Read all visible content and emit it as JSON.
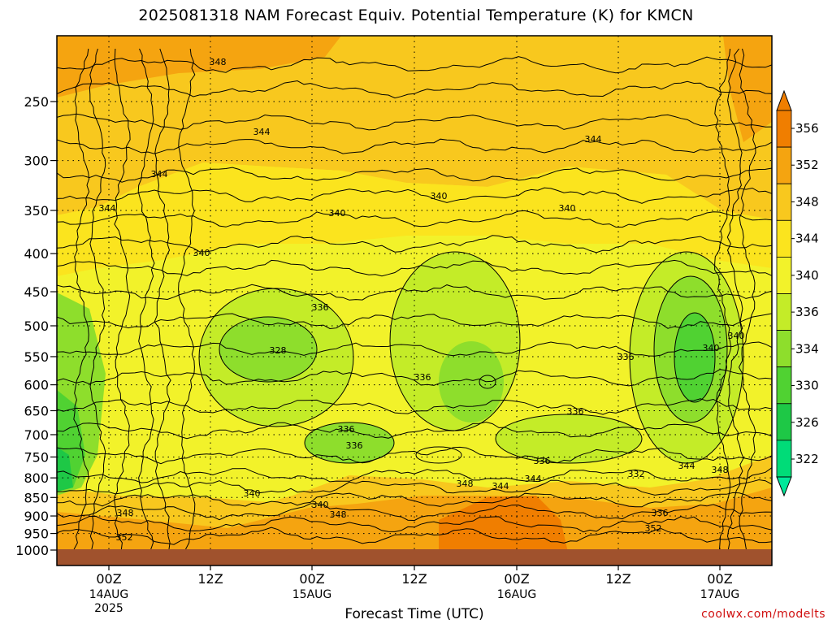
{
  "chart_data": {
    "type": "heatmap",
    "title": "2025081318 NAM Forecast Equiv. Potential Temperature (K) for KMCN",
    "xlabel": "Forecast Time (UTC)",
    "ylabel": "",
    "y_axis": {
      "scale": "log-pressure (hPa), inverted",
      "ticks": [
        250,
        300,
        350,
        400,
        450,
        500,
        550,
        600,
        650,
        700,
        750,
        800,
        850,
        900,
        950,
        1000
      ]
    },
    "x_axis": {
      "ticks": [
        {
          "time": "00Z",
          "date": "14AUG",
          "year": "2025"
        },
        {
          "time": "12Z",
          "date": "",
          "year": ""
        },
        {
          "time": "00Z",
          "date": "15AUG",
          "year": ""
        },
        {
          "time": "12Z",
          "date": "",
          "year": ""
        },
        {
          "time": "00Z",
          "date": "16AUG",
          "year": ""
        },
        {
          "time": "12Z",
          "date": "",
          "year": ""
        },
        {
          "time": "00Z",
          "date": "17AUG",
          "year": ""
        }
      ]
    },
    "grid": true,
    "colorbar": {
      "labels": [
        356,
        352,
        348,
        344,
        340,
        336,
        334,
        330,
        326,
        322
      ],
      "colors": [
        "#f07e00",
        "#f5a410",
        "#f8c81e",
        "#fbe41e",
        "#f2f22a",
        "#c4ec28",
        "#8ede2c",
        "#50d232",
        "#1ec846",
        "#00dc78"
      ],
      "placement": "right"
    },
    "contour_labels": [
      "348",
      "344",
      "344",
      "344",
      "344",
      "340",
      "340",
      "340",
      "340",
      "336",
      "336",
      "336",
      "336",
      "336",
      "336",
      "336",
      "332",
      "328",
      "340",
      "340",
      "344",
      "348",
      "348",
      "348",
      "344",
      "340",
      "336",
      "348",
      "344",
      "352",
      "352",
      "340"
    ],
    "colors": {
      "ground": "#a0522d",
      "credit": "#d01010"
    }
  },
  "credit": "coolwx.com/modelts"
}
